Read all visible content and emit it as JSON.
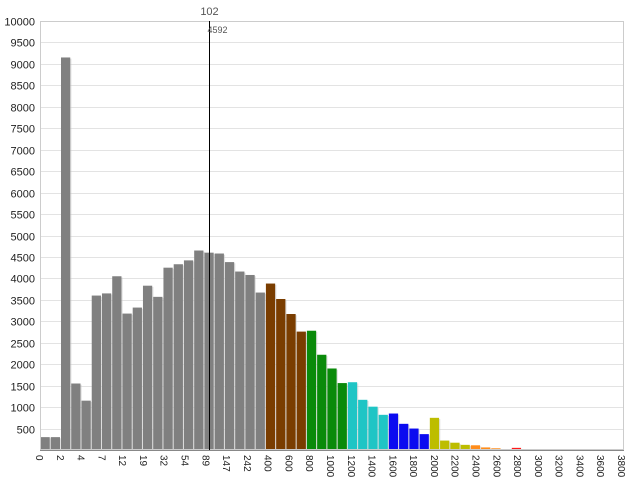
{
  "chart_data": {
    "type": "bar",
    "title": "",
    "xlabel": "",
    "ylabel": "",
    "ylim": [
      0,
      10000
    ],
    "yticks": [
      500,
      1000,
      1500,
      2000,
      2500,
      3000,
      3500,
      4000,
      4500,
      5000,
      5500,
      6000,
      6500,
      7000,
      7500,
      8000,
      8500,
      9000,
      9500,
      10000
    ],
    "grid": true,
    "legend": "none",
    "xtick_labels": [
      "0",
      "2",
      "4",
      "7",
      "12",
      "19",
      "32",
      "54",
      "89",
      "147",
      "242",
      "400",
      "600",
      "800",
      "1000",
      "1200",
      "1400",
      "1600",
      "1800",
      "2000",
      "2200",
      "2400",
      "2600",
      "2800",
      "3000",
      "3200",
      "3400",
      "3600",
      "3800"
    ],
    "values": [
      300,
      300,
      9150,
      1550,
      1150,
      3600,
      3650,
      4050,
      3180,
      3320,
      3830,
      3570,
      4250,
      4330,
      4420,
      4650,
      4600,
      4580,
      4380,
      4160,
      4080,
      3670,
      3880,
      3520,
      3170,
      2760,
      2780,
      2220,
      1900,
      1560,
      1580,
      1170,
      1010,
      820,
      850,
      610,
      500,
      370,
      750,
      220,
      170,
      120,
      110,
      60,
      40,
      20,
      50,
      20,
      10,
      10,
      10,
      10,
      10,
      10,
      10,
      10,
      10
    ],
    "colors": [
      "#808080",
      "#808080",
      "#808080",
      "#808080",
      "#808080",
      "#808080",
      "#808080",
      "#808080",
      "#808080",
      "#808080",
      "#808080",
      "#808080",
      "#808080",
      "#808080",
      "#808080",
      "#808080",
      "#808080",
      "#808080",
      "#808080",
      "#808080",
      "#808080",
      "#808080",
      "#7a3d00",
      "#7a3d00",
      "#7a3d00",
      "#7a3d00",
      "#0a8a0a",
      "#0a8a0a",
      "#0a8a0a",
      "#0a8a0a",
      "#1fc5c5",
      "#1fc5c5",
      "#1fc5c5",
      "#1fc5c5",
      "#0b0bf0",
      "#0b0bf0",
      "#0b0bf0",
      "#0b0bf0",
      "#bdbd00",
      "#bdbd00",
      "#bdbd00",
      "#bdbd00",
      "#ff8c1a",
      "#ff8c1a",
      "#ff8c1a",
      "#ff8c1a",
      "#ff1a1a",
      "#ff1a1a",
      "#ff1a1a",
      "#ff1a1a",
      "#ff1a1a",
      "#ff1a1a",
      "#ff1a1a",
      "#ff1a1a",
      "#ff1a1a",
      "#ff1a1a",
      "#ff1a1a"
    ],
    "marker": {
      "label": "102",
      "value": "4592",
      "bar_index": 16
    }
  }
}
